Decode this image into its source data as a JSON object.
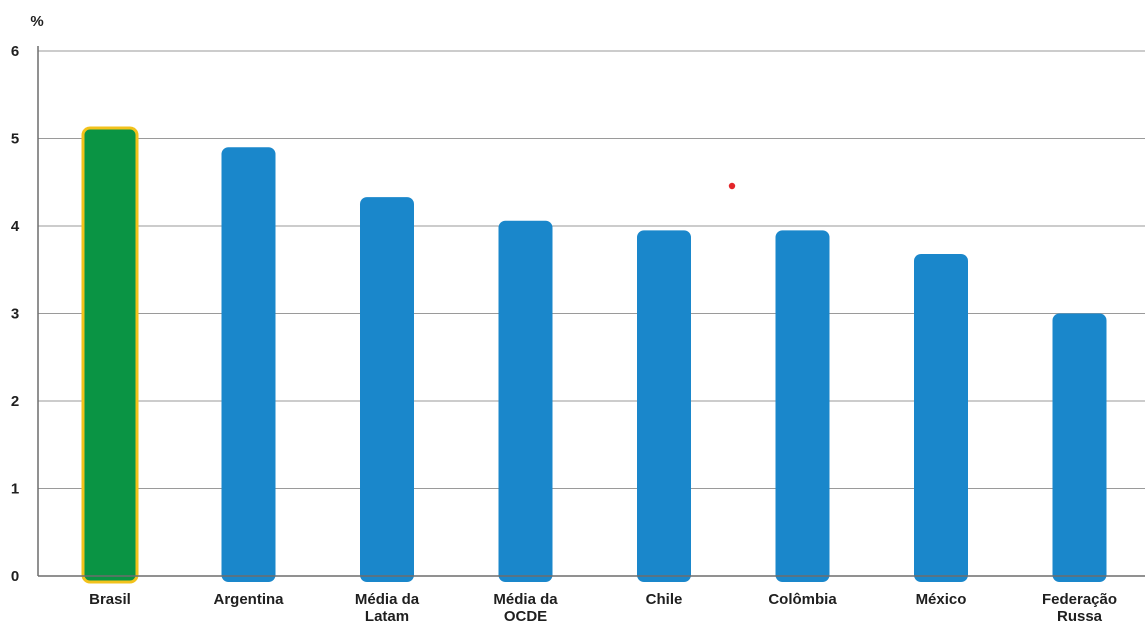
{
  "chart_data": {
    "type": "bar",
    "unit_label": "%",
    "categories": [
      "Brasil",
      "Argentina",
      "Média da\nLatam",
      "Média da\nOCDE",
      "Chile",
      "Colômbia",
      "México",
      "Federação\nRussa"
    ],
    "values": [
      5.12,
      4.9,
      4.33,
      4.06,
      3.95,
      3.95,
      3.68,
      3.0
    ],
    "ylim": [
      0,
      6
    ],
    "yticks": [
      "0",
      "1",
      "2",
      "3",
      "4",
      "5",
      "6"
    ],
    "grid": true,
    "colors": {
      "default_bar": "#1a87cb",
      "highlight_bar": "#0a9444",
      "highlight_outline": "#f2c21b",
      "marker": "#e3262a"
    },
    "highlight_index": 0
  }
}
